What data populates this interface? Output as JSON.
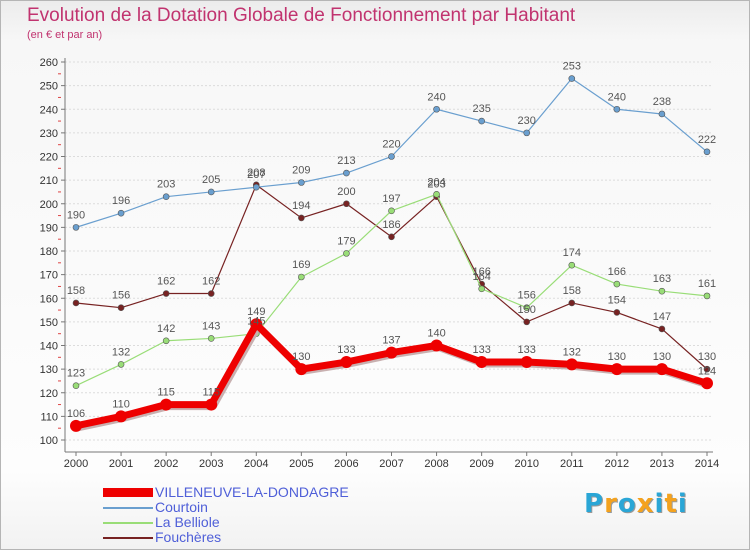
{
  "chart_data": {
    "type": "line",
    "title": "Evolution de la Dotation Globale de Fonctionnement par Habitant",
    "subtitle": "(en € et par an)",
    "xlabel": "",
    "ylabel": "",
    "categories": [
      "2000",
      "2001",
      "2002",
      "2003",
      "2004",
      "2005",
      "2006",
      "2007",
      "2008",
      "2009",
      "2010",
      "2011",
      "2012",
      "2013",
      "2014"
    ],
    "ylim": [
      100,
      260
    ],
    "yticks": [
      "100",
      "110",
      "120",
      "130",
      "140",
      "150",
      "160",
      "170",
      "180",
      "190",
      "200",
      "210",
      "220",
      "230",
      "240",
      "250",
      "260"
    ],
    "grid": "horizontal",
    "legend_position": "bottom-left",
    "series": [
      {
        "name": "VILLENEUVE-LA-DONDAGRE",
        "color": "#ee0000",
        "values": [
          106,
          110,
          115,
          115,
          149,
          130,
          133,
          137,
          140,
          133,
          133,
          132,
          130,
          130,
          124
        ],
        "labels": [
          "106",
          "110",
          "115",
          "115",
          "149",
          "130",
          "133",
          "137",
          "140",
          "133",
          "133",
          "132",
          "130",
          "130",
          "124"
        ]
      },
      {
        "name": "Courtoin",
        "color": "#6a9fcf",
        "values": [
          190,
          196,
          203,
          205,
          207,
          209,
          213,
          220,
          240,
          235,
          230,
          253,
          240,
          238,
          222
        ],
        "labels": [
          "190",
          "196",
          "203",
          "205",
          "207",
          "209",
          "213",
          "220",
          "240",
          "235",
          "230",
          "253",
          "240",
          "238",
          "222"
        ]
      },
      {
        "name": "La Belliole",
        "color": "#99dd77",
        "values": [
          123,
          132,
          142,
          143,
          145,
          169,
          179,
          197,
          204,
          164,
          156,
          174,
          166,
          163,
          161
        ],
        "labels": [
          "123",
          "132",
          "142",
          "143",
          "145",
          "169",
          "179",
          "197",
          "204",
          "164",
          "156",
          "174",
          "166",
          "163",
          "161"
        ]
      },
      {
        "name": "Fouchères",
        "color": "#772222",
        "values": [
          158,
          156,
          162,
          162,
          208,
          194,
          200,
          186,
          203,
          166,
          150,
          158,
          154,
          147,
          130
        ],
        "labels": [
          "158",
          "156",
          "162",
          "162",
          "208",
          "194",
          "200",
          "186",
          "203",
          "166",
          "150",
          "158",
          "154",
          "147",
          "130"
        ]
      }
    ]
  },
  "logo": {
    "letters": [
      "P",
      "r",
      "o",
      "x",
      "i",
      "t",
      "i"
    ],
    "colors": [
      "#2aa6d6",
      "#f4a21e",
      "#2aa6d6",
      "#f4a21e",
      "#2aa6d6",
      "#f4a21e",
      "#2aa6d6"
    ]
  }
}
